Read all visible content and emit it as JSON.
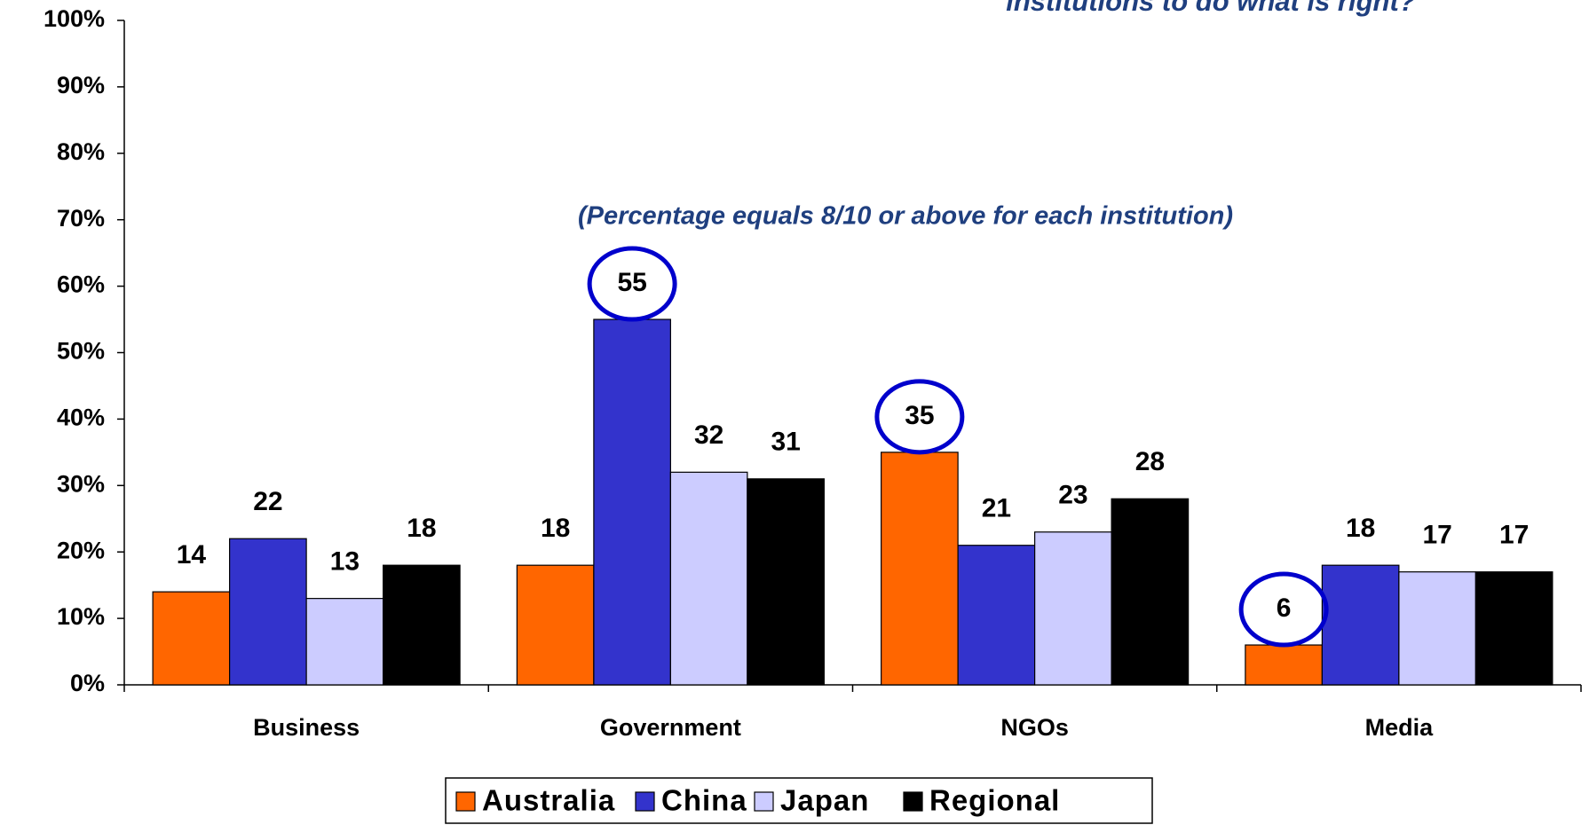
{
  "chart_data": {
    "type": "bar",
    "title": "institutions to do what is right?",
    "annotation": "(Percentage equals 8/10 or above for each institution)",
    "categories": [
      "Business",
      "Government",
      "NGOs",
      "Media"
    ],
    "series": [
      {
        "name": "Australia",
        "color": "#ff6600",
        "values": [
          14,
          18,
          35,
          6
        ]
      },
      {
        "name": "China",
        "color": "#3333cc",
        "values": [
          22,
          55,
          21,
          18
        ]
      },
      {
        "name": "Japan",
        "color": "#ccccff",
        "values": [
          13,
          32,
          23,
          17
        ]
      },
      {
        "name": "Regional",
        "color": "#000000",
        "values": [
          18,
          31,
          28,
          17
        ]
      }
    ],
    "ylim": [
      0,
      100
    ],
    "yticks": [
      {
        "value": 0,
        "label": "0%"
      },
      {
        "value": 10,
        "label": "10%"
      },
      {
        "value": 20,
        "label": "20%"
      },
      {
        "value": 30,
        "label": "30%"
      },
      {
        "value": 40,
        "label": "40%"
      },
      {
        "value": 50,
        "label": "50%"
      },
      {
        "value": 60,
        "label": "60%"
      },
      {
        "value": 70,
        "label": "70%"
      },
      {
        "value": 80,
        "label": "80%"
      },
      {
        "value": 90,
        "label": "90%"
      },
      {
        "value": 100,
        "label": "100%"
      }
    ],
    "legend": "bottom"
  }
}
